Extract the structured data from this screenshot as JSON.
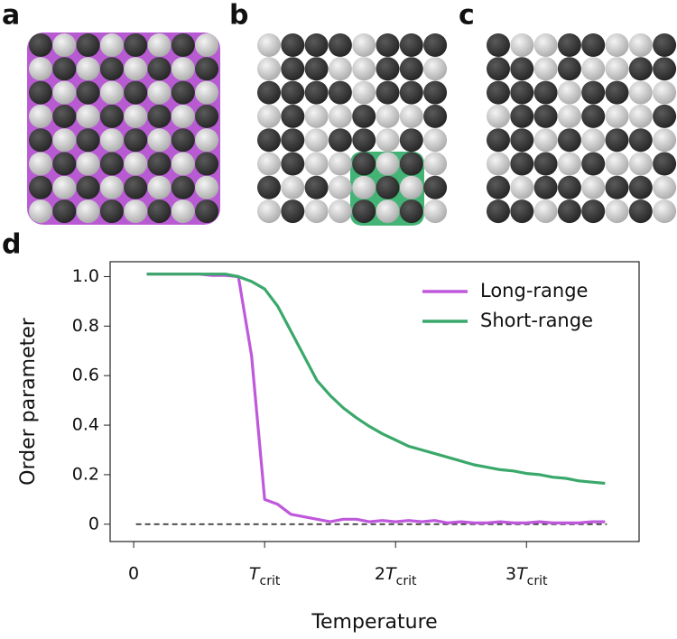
{
  "panel_labels": [
    "a",
    "b",
    "c"
  ],
  "chart_data": {
    "type": "line",
    "panel_label": "d",
    "xlabel": "Temperature",
    "ylabel": "Order parameter",
    "x": [
      0.1,
      0.2,
      0.3,
      0.4,
      0.5,
      0.6,
      0.7,
      0.8,
      0.9,
      1.0,
      1.1,
      1.2,
      1.3,
      1.4,
      1.5,
      1.6,
      1.7,
      1.8,
      1.9,
      2.0,
      2.1,
      2.2,
      2.3,
      2.4,
      2.5,
      2.6,
      2.7,
      2.8,
      2.9,
      3.0,
      3.1,
      3.2,
      3.3,
      3.4,
      3.5,
      3.6
    ],
    "series": [
      {
        "name": "Long-range",
        "color": "#bf58dc",
        "values": [
          1.01,
          1.01,
          1.01,
          1.01,
          1.01,
          1.005,
          1.005,
          1.0,
          0.68,
          0.1,
          0.08,
          0.04,
          0.03,
          0.02,
          0.01,
          0.02,
          0.02,
          0.01,
          0.015,
          0.01,
          0.015,
          0.01,
          0.015,
          0.005,
          0.01,
          0.005,
          0.005,
          0.01,
          0.005,
          0.005,
          0.01,
          0.005,
          0.005,
          0.005,
          0.01,
          0.01
        ]
      },
      {
        "name": "Short-range",
        "color": "#3aa86b",
        "values": [
          1.01,
          1.01,
          1.01,
          1.01,
          1.01,
          1.01,
          1.01,
          1.0,
          0.98,
          0.95,
          0.88,
          0.78,
          0.68,
          0.58,
          0.52,
          0.47,
          0.43,
          0.395,
          0.365,
          0.34,
          0.315,
          0.3,
          0.285,
          0.27,
          0.255,
          0.24,
          0.23,
          0.22,
          0.215,
          0.205,
          0.2,
          0.19,
          0.185,
          0.175,
          0.17,
          0.165
        ]
      }
    ],
    "reference_line": 0,
    "xlim": [
      -0.18,
      3.86
    ],
    "ylim": [
      -0.07,
      1.06
    ],
    "xticks": [
      0,
      {
        "value": 1,
        "label": "Tcrit"
      },
      {
        "value": 2,
        "label": "2Tcrit"
      },
      {
        "value": 3,
        "label": "3Tcrit"
      }
    ],
    "yticks": [
      0,
      0.2,
      0.4,
      0.6,
      0.8,
      {
        "value": 1,
        "label": "1.0"
      }
    ],
    "legend": "upper right",
    "grid": false
  }
}
